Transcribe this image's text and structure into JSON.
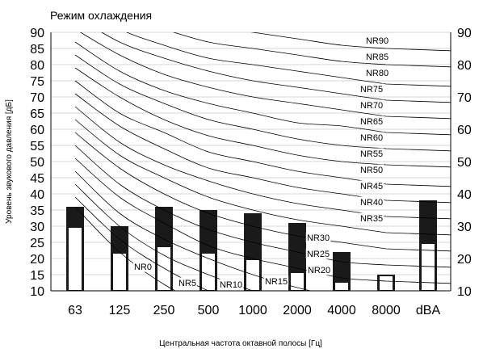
{
  "chart_data": {
    "type": "bar",
    "title": "Режим охлаждения",
    "ylabel": "Уровень звукового давления [дБ]",
    "xlabel": "Центральная частота октавной полосы [Гц]",
    "categories": [
      "63",
      "125",
      "250",
      "500",
      "1000",
      "2000",
      "4000",
      "8000",
      "dBA"
    ],
    "ylim": [
      10,
      90
    ],
    "yticks": [
      10,
      15,
      20,
      25,
      30,
      35,
      40,
      45,
      50,
      55,
      60,
      65,
      70,
      75,
      80,
      85,
      90
    ],
    "ytick_labels": [
      "10",
      "15",
      "20",
      "25",
      "30",
      "35",
      "40",
      "45",
      "50",
      "55",
      "60",
      "65",
      "70",
      "75",
      "80",
      "85",
      "90"
    ],
    "yticks_right": [
      10,
      20,
      30,
      40,
      50,
      60,
      70,
      80,
      90
    ],
    "ytick_labels_right": [
      "10",
      "20",
      "30",
      "40",
      "50",
      "60",
      "70",
      "80",
      "90"
    ],
    "grid": "horizontal",
    "series": [
      {
        "values": [
          36,
          30,
          36,
          35,
          34,
          31,
          22,
          15,
          38
        ],
        "color": "#1a1a1a"
      },
      {
        "values": [
          29.5,
          21.5,
          23.5,
          21.5,
          19.5,
          15.5,
          12.5,
          14.5,
          24.5
        ],
        "color": "#ffffff"
      }
    ],
    "nr_curves": [
      {
        "label": "NR0",
        "values": [
          36,
          22,
          12,
          5,
          0,
          -4,
          -6,
          -8
        ]
      },
      {
        "label": "NR5",
        "values": [
          39,
          26,
          17,
          10,
          5,
          1,
          -2,
          -4
        ]
      },
      {
        "label": "NR10",
        "values": [
          43,
          30,
          21,
          15,
          10,
          6,
          3,
          1
        ]
      },
      {
        "label": "NR15",
        "values": [
          47,
          34,
          26,
          20,
          15,
          11,
          8,
          6
        ]
      },
      {
        "label": "NR20",
        "values": [
          51,
          39,
          31,
          24,
          20,
          17,
          14,
          13
        ]
      },
      {
        "label": "NR25",
        "values": [
          55,
          43,
          35,
          29,
          25,
          22,
          19,
          18
        ]
      },
      {
        "label": "NR30",
        "values": [
          59,
          48,
          40,
          34,
          30,
          27,
          25,
          23
        ]
      },
      {
        "label": "NR35",
        "values": [
          63,
          52,
          45,
          39,
          35,
          32,
          30,
          28
        ]
      },
      {
        "label": "NR40",
        "values": [
          67,
          56,
          49,
          44,
          40,
          37,
          35,
          33
        ]
      },
      {
        "label": "NR45",
        "values": [
          71,
          61,
          54,
          48,
          45,
          42,
          40,
          38
        ]
      },
      {
        "label": "NR50",
        "values": [
          75,
          65,
          59,
          53,
          50,
          47,
          45,
          43
        ]
      },
      {
        "label": "NR55",
        "values": [
          79,
          70,
          63,
          58,
          55,
          52,
          50,
          49
        ]
      },
      {
        "label": "NR60",
        "values": [
          83,
          74,
          68,
          63,
          60,
          57,
          55,
          54
        ]
      },
      {
        "label": "NR65",
        "values": [
          87,
          78,
          72,
          68,
          65,
          62,
          61,
          59
        ]
      },
      {
        "label": "NR70",
        "values": [
          91,
          83,
          77,
          73,
          70,
          68,
          66,
          64
        ]
      },
      {
        "label": "NR75",
        "values": [
          95,
          87,
          82,
          78,
          75,
          73,
          71,
          69
        ]
      },
      {
        "label": "NR80",
        "values": [
          99,
          91,
          86,
          82,
          80,
          78,
          76,
          74
        ]
      },
      {
        "label": "NR85",
        "values": [
          103,
          96,
          91,
          87,
          85,
          83,
          81,
          80
        ]
      },
      {
        "label": "NR90",
        "values": [
          107,
          100,
          95,
          92,
          90,
          88,
          86,
          85
        ]
      }
    ]
  }
}
